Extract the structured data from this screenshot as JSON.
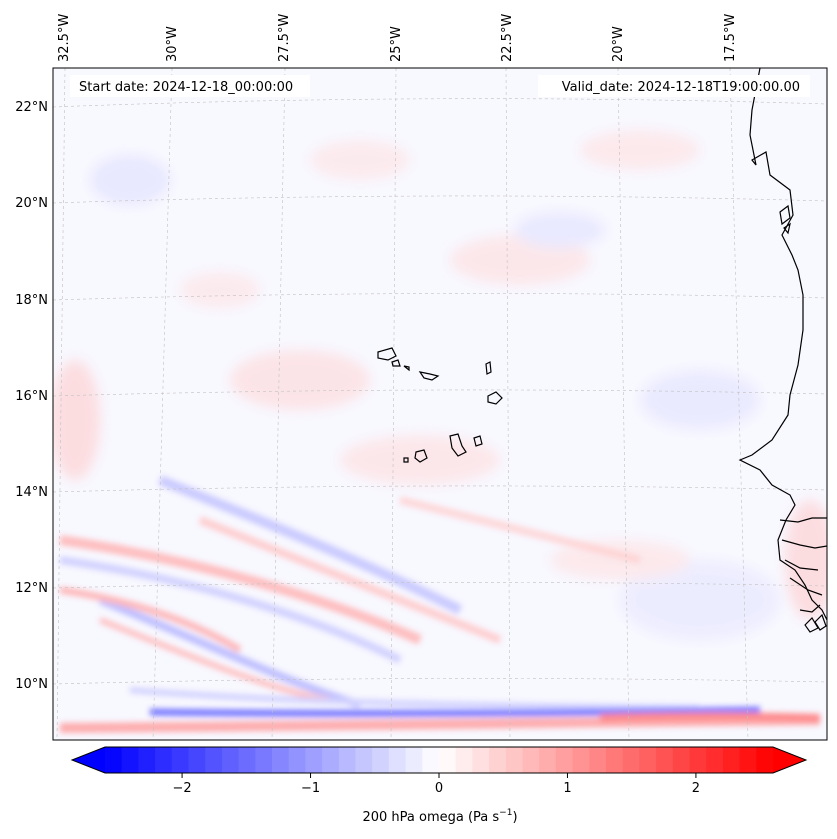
{
  "header": {
    "start_date": "Start date: 2024-12-18_00:00:00",
    "valid_date": "Valid_date: 2024-12-18T19:00:00.00"
  },
  "longitude_labels": [
    "32.5°W",
    "30°W",
    "27.5°W",
    "25°W",
    "22.5°W",
    "20°W",
    "17.5°W"
  ],
  "latitude_labels": [
    "22°N",
    "20°N",
    "18°N",
    "16°N",
    "14°N",
    "12°N",
    "10°N"
  ],
  "colorbar": {
    "ticks": [
      "−2",
      "−1",
      "0",
      "1",
      "2"
    ],
    "tick_values": [
      -2,
      -1,
      0,
      1,
      2
    ],
    "vmin": -2.6,
    "vmax": 2.6,
    "label_prefix": "200 hPa omega (Pa s",
    "label_exp": "−1",
    "label_suffix": ")",
    "colors": {
      "negative": "#0000ff",
      "zero": "#ffffff",
      "positive": "#ff0000"
    }
  },
  "colors": {
    "coastline": "#000000",
    "grid": "#b0b0b0"
  }
}
